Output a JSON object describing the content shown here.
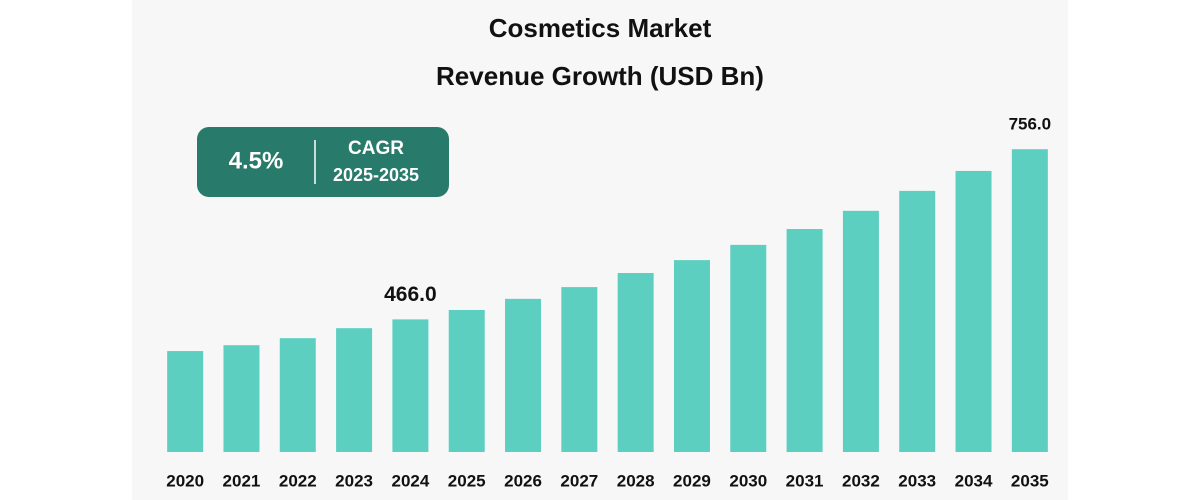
{
  "chart_data": {
    "type": "bar",
    "title": "Cosmetics Market",
    "subtitle": "Revenue Growth (USD Bn)",
    "categories": [
      "2020",
      "2021",
      "2022",
      "2023",
      "2024",
      "2025",
      "2026",
      "2027",
      "2028",
      "2029",
      "2030",
      "2031",
      "2032",
      "2033",
      "2034",
      "2035"
    ],
    "values": [
      412,
      422,
      434,
      451,
      466,
      482,
      501,
      521,
      545,
      567,
      593,
      620,
      651,
      685,
      719,
      756
    ],
    "value_labels": [
      null,
      null,
      null,
      null,
      "466.0",
      null,
      null,
      null,
      null,
      null,
      null,
      null,
      null,
      null,
      null,
      "756.0"
    ],
    "color": "#5ccfc1",
    "ylim": [
      240,
      770
    ],
    "annotations": {
      "cagr_value": "4.5%",
      "cagr_label": "CAGR",
      "cagr_period": "2025-2035",
      "color": "#287a6b"
    }
  }
}
